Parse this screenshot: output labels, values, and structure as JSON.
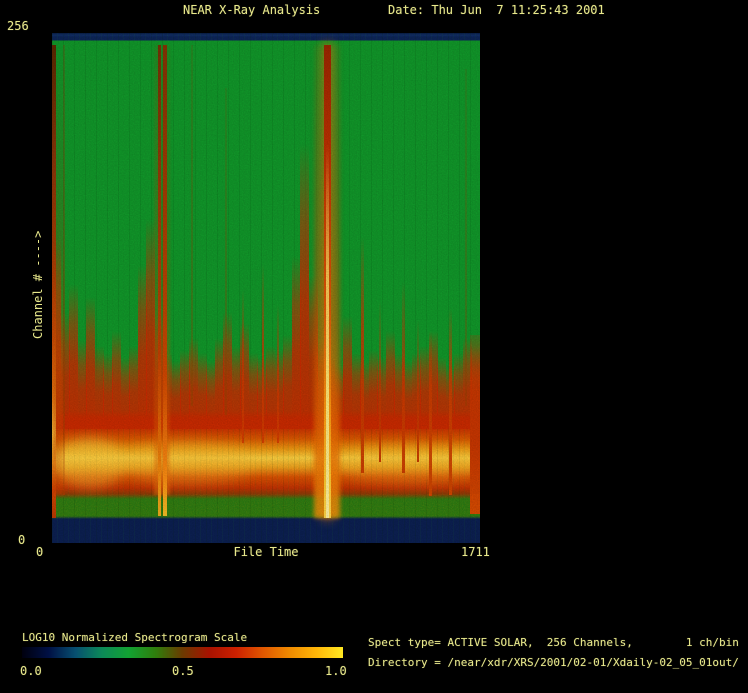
{
  "header": {
    "title": "NEAR X-Ray Analysis",
    "date_label": "Date: Thu Jun  7 11:25:43 2001"
  },
  "axes": {
    "y_top_tick": "256",
    "y_bottom_tick": "0",
    "y_axis_label": "Channel # ---->",
    "x_left_tick": "0",
    "x_right_tick": "1711",
    "x_axis_label": "File Time"
  },
  "colorbar": {
    "title": "LOG10 Normalized Spectrogram Scale",
    "ticks": [
      "0.0",
      "0.5",
      "1.0"
    ],
    "gradient": [
      "#00000e",
      "#001044",
      "#074f70",
      "#0c8a58",
      "#12a232",
      "#2f7e0c",
      "#6b3a00",
      "#a81200",
      "#cc2000",
      "#e05600",
      "#ef8a00",
      "#ffb608",
      "#ffe822"
    ]
  },
  "info": {
    "line1": "Spect type= ACTIVE SOLAR,  256 Channels,        1 ch/bin",
    "line2": "Directory = /near/xdr/XRS/2001/02-01/Xdaily-02_05_01out/"
  },
  "chart_data": {
    "type": "heatmap",
    "title": "NEAR X-Ray Analysis",
    "xlabel": "File Time",
    "ylabel": "Channel #",
    "xlim": [
      0,
      1711
    ],
    "ylim": [
      0,
      256
    ],
    "colorbar": {
      "label": "LOG10 Normalized Spectrogram Scale",
      "range": [
        0.0,
        1.0
      ],
      "ticks": [
        0.0,
        0.5,
        1.0
      ]
    },
    "bands": [
      {
        "channels": [
          253,
          256
        ],
        "value": 0.08,
        "color": "#0d2659",
        "note": "no-data top band"
      },
      {
        "channels": [
          92,
          253
        ],
        "value": 0.45,
        "color": "#11992a",
        "note": "background green"
      },
      {
        "channels": [
          53,
          92
        ],
        "value": 0.6,
        "color": "#cc2e00",
        "note": "jagged transition, red spikes over green"
      },
      {
        "channels": [
          36,
          53
        ],
        "value": 0.75,
        "color": "#dd5a00",
        "note": "elevated flux"
      },
      {
        "channels": [
          25,
          36
        ],
        "value": 0.95,
        "color": "#ffd240",
        "note": "peak flux band"
      },
      {
        "channels": [
          13,
          25
        ],
        "value": 0.7,
        "color": "#c43202",
        "note": "red below peak"
      },
      {
        "channels": [
          12,
          13
        ],
        "value": 0.5,
        "color": "#2b7c12",
        "note": "speckled green strip"
      },
      {
        "channels": [
          0,
          12
        ],
        "value": 0.08,
        "color": "#0c2052",
        "note": "no-data bottom band"
      }
    ],
    "boundary_profile": [
      [
        20,
        150
      ],
      [
        60,
        110
      ],
      [
        90,
        125
      ],
      [
        130,
        95
      ],
      [
        170,
        118
      ],
      [
        210,
        92
      ],
      [
        250,
        88
      ],
      [
        290,
        100
      ],
      [
        330,
        86
      ],
      [
        370,
        92
      ],
      [
        420,
        135
      ],
      [
        445,
        160
      ],
      [
        470,
        110
      ],
      [
        510,
        88
      ],
      [
        550,
        84
      ],
      [
        590,
        90
      ],
      [
        630,
        96
      ],
      [
        670,
        88
      ],
      [
        710,
        84
      ],
      [
        750,
        96
      ],
      [
        790,
        110
      ],
      [
        830,
        92
      ],
      [
        870,
        104
      ],
      [
        910,
        88
      ],
      [
        950,
        86
      ],
      [
        990,
        92
      ],
      [
        1030,
        90
      ],
      [
        1060,
        98
      ],
      [
        1085,
        140
      ],
      [
        1100,
        200
      ],
      [
        1115,
        130
      ],
      [
        1140,
        95
      ],
      [
        1170,
        86
      ],
      [
        1200,
        82
      ],
      [
        1240,
        108
      ],
      [
        1270,
        88
      ],
      [
        1300,
        84
      ],
      [
        1330,
        90
      ],
      [
        1360,
        86
      ],
      [
        1390,
        100
      ],
      [
        1420,
        88
      ],
      [
        1450,
        84
      ],
      [
        1480,
        88
      ],
      [
        1510,
        92
      ],
      [
        1540,
        100
      ],
      [
        1570,
        86
      ],
      [
        1600,
        82
      ],
      [
        1630,
        88
      ],
      [
        1660,
        96
      ],
      [
        1690,
        92
      ]
    ],
    "events": [
      {
        "name": "left-edge-artifact-core",
        "file_time": 4,
        "width": 5,
        "ch_top": 253,
        "ch_bottom": 0,
        "opacity": 0.95,
        "gradient": [
          "#5e2400 0%",
          "#8f3008 25%",
          "#b43a02 48%",
          "#cc4a04 62%",
          "#e87a10 74%",
          "#ffc83e 82%",
          "#f08a14 88%",
          "#d84400 94%",
          "#c03400 100%"
        ]
      },
      {
        "name": "left-edge-artifact-halo",
        "file_time": 24,
        "width": 10,
        "ch_top": 253,
        "ch_bottom": 12,
        "blur": 1,
        "gradient": [
          "rgba(150,60,0,0.00) 0%",
          "rgba(170,60,0,0.22) 45%",
          "rgba(210,85,0,0.40) 70%",
          "rgba(205,65,0,0.45) 100%"
        ]
      },
      {
        "name": "faint-streak",
        "file_time": 46,
        "width": 2,
        "ch_top": 253,
        "ch_bottom": 12,
        "gradient": [
          "rgba(115,70,10,0.30) 0%",
          "rgba(150,65,0,0.45) 75%",
          "rgba(185,60,0,0.55) 100%"
        ]
      },
      {
        "name": "bright-band-blob",
        "file_time": 150,
        "width": 70,
        "ch_top": 42,
        "ch_bottom": 16,
        "blur": 6,
        "round": true,
        "gradient": [
          "rgba(255,214,70,0.55) 0%",
          "rgba(255,190,50,0.45) 100%"
        ]
      },
      {
        "name": "bright-band-blob",
        "file_time": 540,
        "width": 130,
        "ch_top": 40,
        "ch_bottom": 18,
        "blur": 7,
        "round": true,
        "gradient": [
          "rgba(255,200,55,0.40) 0%",
          "rgba(255,180,45,0.32) 100%"
        ]
      },
      {
        "name": "bright-band-blob",
        "file_time": 1430,
        "width": 140,
        "ch_top": 38,
        "ch_bottom": 18,
        "blur": 7,
        "round": true,
        "gradient": [
          "rgba(255,195,50,0.34) 0%",
          "rgba(255,175,40,0.28) 100%"
        ]
      },
      {
        "name": "flare-streak-halo",
        "file_time": 441,
        "width": 16,
        "ch_top": 253,
        "ch_bottom": 12,
        "blur": 1,
        "gradient": [
          "rgba(165,60,0,0.10) 0%",
          "rgba(190,70,0,0.26) 55%",
          "rgba(225,95,0,0.42) 85%",
          "rgba(235,115,12,0.48) 100%"
        ]
      },
      {
        "name": "flare-streak-a",
        "file_time": 429,
        "width": 3,
        "ch_top": 253,
        "ch_bottom": 1,
        "opacity": 0.92,
        "gradient": [
          "#7c2a02 0%",
          "#a83404 35%",
          "#c83c00 65%",
          "#ee7e08 88%",
          "#ffb01e 100%"
        ]
      },
      {
        "name": "flare-streak-b",
        "file_time": 453,
        "width": 4,
        "ch_top": 253,
        "ch_bottom": 1,
        "opacity": 0.95,
        "gradient": [
          "#8a2e02 0%",
          "#b43a02 40%",
          "#d44600 70%",
          "#ff9012 92%",
          "#ffc428 100%"
        ]
      },
      {
        "name": "faint-streak",
        "file_time": 560,
        "width": 2,
        "ch_top": 253,
        "ch_bottom": 60,
        "gradient": [
          "rgba(105,85,10,0.22) 0%",
          "rgba(140,75,0,0.38) 100%"
        ]
      },
      {
        "name": "faint-streak",
        "file_time": 694,
        "width": 2,
        "ch_top": 230,
        "ch_bottom": 55,
        "gradient": [
          "rgba(105,85,10,0.18) 0%",
          "rgba(150,65,0,0.38) 100%"
        ]
      },
      {
        "name": "minor-spike",
        "file_time": 764,
        "width": 2,
        "ch_top": 122,
        "ch_bottom": 40,
        "gradient": [
          "rgba(195,50,0,0) 0%",
          "rgba(205,55,0,0.75) 45%",
          "rgba(212,60,0,0.9) 100%"
        ]
      },
      {
        "name": "minor-spike",
        "file_time": 842,
        "width": 2,
        "ch_top": 136,
        "ch_bottom": 40,
        "gradient": [
          "rgba(195,50,0,0) 0%",
          "rgba(205,55,0,0.75) 45%",
          "rgba(212,60,0,0.9) 100%"
        ]
      },
      {
        "name": "minor-spike",
        "file_time": 902,
        "width": 2,
        "ch_top": 114,
        "ch_bottom": 40,
        "gradient": [
          "rgba(195,50,0,0) 0%",
          "rgba(205,55,0,0.78) 50%",
          "rgba(212,60,0,0.9) 100%"
        ]
      },
      {
        "name": "major-flare-halo",
        "file_time": 1100,
        "width": 26,
        "ch_top": 253,
        "ch_bottom": 0,
        "blur": 2,
        "gradient": [
          "rgba(200,70,0,0.08) 0%",
          "rgba(205,75,0,0.28) 30%",
          "rgba(215,85,0,0.50) 60%",
          "rgba(235,110,5,0.75) 85%",
          "rgba(248,150,12,0.82) 100%"
        ]
      },
      {
        "name": "major-flare-mid",
        "file_time": 1100,
        "width": 7,
        "ch_top": 253,
        "ch_bottom": 0,
        "glow": true,
        "gradient": [
          "#9c2600 0%",
          "#c23200 25%",
          "#e05604 55%",
          "#ff9a10 78%",
          "#ffc930 92%",
          "#ffd84a 100%"
        ]
      },
      {
        "name": "major-flare-core",
        "file_time": 1100,
        "width": 3,
        "ch_top": 200,
        "ch_bottom": 0,
        "gradient": [
          "rgba(255,220,90,0) 0%",
          "rgba(255,226,102,0.8) 35%",
          "#ffe878 70%",
          "#fff4a2 100%"
        ]
      },
      {
        "name": "minor-spike",
        "file_time": 1243,
        "width": 3,
        "ch_top": 150,
        "ch_bottom": 24,
        "gradient": [
          "rgba(188,48,0,0) 0%",
          "rgba(202,56,0,0.8) 40%",
          "#cc3e00 100%"
        ]
      },
      {
        "name": "minor-spike",
        "file_time": 1312,
        "width": 2,
        "ch_top": 116,
        "ch_bottom": 30,
        "gradient": [
          "rgba(188,48,0,0) 0%",
          "rgba(200,55,0,0.7) 50%",
          "#c83c00 100%"
        ]
      },
      {
        "name": "minor-spike",
        "file_time": 1406,
        "width": 3,
        "ch_top": 126,
        "ch_bottom": 24,
        "gradient": [
          "rgba(188,48,0,0) 0%",
          "rgba(202,56,0,0.8) 45%",
          "#cc3e00 100%"
        ]
      },
      {
        "name": "minor-spike",
        "file_time": 1462,
        "width": 2,
        "ch_top": 106,
        "ch_bottom": 30,
        "gradient": [
          "rgba(188,48,0,0) 0%",
          "rgba(200,55,0,0.7) 50%",
          "#c83c00 100%"
        ]
      },
      {
        "name": "minor-spike",
        "file_time": 1512,
        "width": 3,
        "ch_top": 100,
        "ch_bottom": 12,
        "gradient": [
          "rgba(190,50,0,0) 0%",
          "rgba(205,60,0,0.85) 35%",
          "#d04600 100%"
        ]
      },
      {
        "name": "minor-spike",
        "file_time": 1592,
        "width": 3,
        "ch_top": 112,
        "ch_bottom": 12,
        "gradient": [
          "rgba(190,50,0,0) 0%",
          "rgba(205,60,0,0.85) 35%",
          "#d04600 100%"
        ]
      },
      {
        "name": "faint-streak",
        "file_time": 1655,
        "width": 2,
        "ch_top": 240,
        "ch_bottom": 60,
        "gradient": [
          "rgba(105,85,10,0.18) 0%",
          "rgba(150,65,0,0.35) 100%"
        ]
      },
      {
        "name": "right-edge-column",
        "file_time": 1690,
        "width": 10,
        "ch_top": 98,
        "ch_bottom": 2,
        "gradient": [
          "rgba(195,50,0,0.2) 0%",
          "rgba(205,55,0,0.8) 25%",
          "#c83600 60%",
          "#d64a00 100%"
        ]
      }
    ]
  }
}
